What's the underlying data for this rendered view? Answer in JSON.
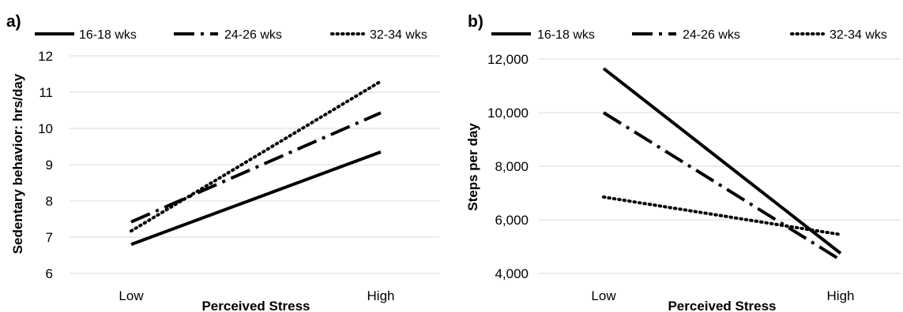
{
  "chart_data": [
    {
      "panel_label": "a)",
      "type": "line",
      "categories": [
        "Low",
        "High"
      ],
      "series": [
        {
          "name": "16-18 wks",
          "style": "solid",
          "values": [
            6.8,
            9.35
          ]
        },
        {
          "name": "24-26 wks",
          "style": "dashdot",
          "values": [
            7.42,
            10.43
          ]
        },
        {
          "name": "32-34 wks",
          "style": "dotted",
          "values": [
            7.17,
            11.3
          ]
        }
      ],
      "xlabel": "Perceived Stress",
      "ylabel": "Sedentary behavior: hrs/day",
      "ylim": [
        6,
        12
      ],
      "yticks": [
        6,
        7,
        8,
        9,
        10,
        11,
        12
      ],
      "ytick_labels": [
        "6",
        "7",
        "8",
        "9",
        "10",
        "11",
        "12"
      ],
      "grid": true,
      "legend": "top"
    },
    {
      "panel_label": "b)",
      "type": "line",
      "categories": [
        "Low",
        "High"
      ],
      "series": [
        {
          "name": "16-18 wks",
          "style": "solid",
          "values": [
            11650,
            4750
          ]
        },
        {
          "name": "24-26 wks",
          "style": "dashdot",
          "values": [
            10000,
            4500
          ]
        },
        {
          "name": "32-34 wks",
          "style": "dotted",
          "values": [
            6850,
            5450
          ]
        }
      ],
      "xlabel": "Perceived Stress",
      "ylabel": "Steps per day",
      "ylim": [
        4000,
        12000
      ],
      "yticks": [
        4000,
        6000,
        8000,
        10000,
        12000
      ],
      "ytick_labels": [
        "4,000",
        "6,000",
        "8,000",
        "10,000",
        "12,000"
      ],
      "grid": true,
      "legend": "top"
    }
  ]
}
